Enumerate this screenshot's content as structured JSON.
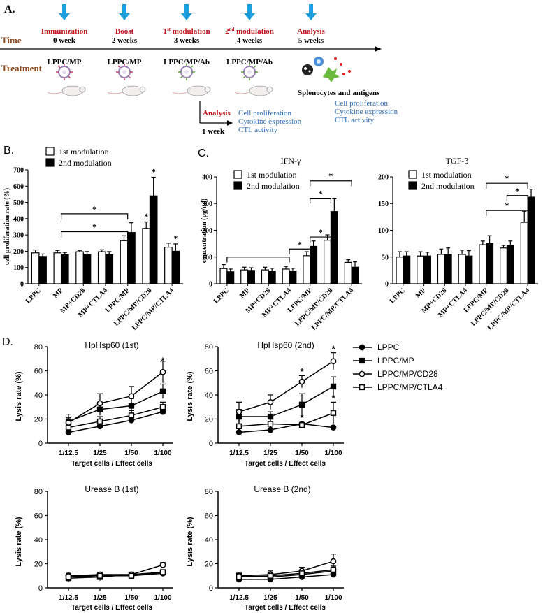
{
  "panelA": {
    "label": "A.",
    "time_label": "Time",
    "treatment_label": "Treatment",
    "events": [
      {
        "title": "Immunization",
        "week": "0 week",
        "treatment": "LPPC/MP",
        "title_color": "#c0141c"
      },
      {
        "title": "Boost",
        "week": "2 weeks",
        "treatment": "LPPC/MP",
        "title_color": "#c0141c"
      },
      {
        "title_pre": "1",
        "title_sup": "st",
        "title_post": " modulation",
        "week": "3 weeks",
        "treatment": "LPPC/MP/Ab",
        "title_color": "#c0141c"
      },
      {
        "title_pre": "2",
        "title_sup": "nd",
        "title_post": " modulation",
        "week": "4 weeks",
        "treatment": "LPPC/MP/Ab",
        "title_color": "#c0141c"
      },
      {
        "title": "Analysis",
        "week": "5 weeks",
        "treatment": "",
        "title_color": "#c0141c"
      }
    ],
    "splenocytes_label": "Splenocytes and antigens",
    "branch_analysis": "Analysis",
    "branch_week": "1 week",
    "outputs": [
      "Cell proliferation",
      "Cytokine expression",
      "CTL activity"
    ],
    "outputs_color": "#2a6ebd",
    "arrow_color": "#1ea0e0",
    "label_color": "#8b4a22"
  },
  "colors": {
    "open_bar": "#ffffff",
    "filled_bar": "#000000",
    "axis": "#000000"
  },
  "chart_data": [
    {
      "id": "B",
      "type": "bar",
      "panel_label": "B.",
      "ylabel": "cell proliferation rate (%)",
      "ylim": [
        0,
        700
      ],
      "yticks": [
        0,
        100,
        200,
        300,
        400,
        500,
        600,
        700
      ],
      "categories": [
        "LPPC",
        "MP",
        "MP+CD28",
        "MP+CTLA4",
        "LPPC/MP",
        "LPPC/MP/CD28",
        "LPPC/MP/CTLA4"
      ],
      "series": [
        {
          "name": "1st modulation",
          "fill": "open",
          "values": [
            190,
            190,
            197,
            197,
            265,
            340,
            225
          ],
          "errors": [
            18,
            15,
            8,
            12,
            30,
            40,
            25
          ]
        },
        {
          "name": "2nd modulation",
          "fill": "filled",
          "values": [
            168,
            178,
            178,
            178,
            315,
            540,
            200
          ],
          "errors": [
            15,
            15,
            20,
            20,
            60,
            115,
            45
          ]
        }
      ],
      "star_labels": [
        {
          "cat": 5,
          "series": 0,
          "text": "*"
        },
        {
          "cat": 5,
          "series": 1,
          "text": "*"
        },
        {
          "cat": 6,
          "series": 1,
          "text": "*"
        }
      ],
      "brackets": [
        {
          "from": 1,
          "to": 4,
          "y": 430,
          "text": "*"
        },
        {
          "from": 1,
          "to": 4,
          "y": 320,
          "text": "*"
        }
      ]
    },
    {
      "id": "C1",
      "type": "bar",
      "panel_label": "C.",
      "title": "IFN-γ",
      "ylabel": "concentration (pg/ml)",
      "ylim": [
        0,
        400
      ],
      "yticks": [
        0,
        100,
        200,
        300,
        400
      ],
      "categories": [
        "LPPC",
        "MP",
        "MP+CD28",
        "MP+CTLA4",
        "LPPC/MP",
        "LPPC/MP/CD28",
        "LPPC/MP/CTLA4"
      ],
      "series": [
        {
          "name": "1st modulation",
          "fill": "open",
          "values": [
            57,
            52,
            52,
            55,
            105,
            163,
            80
          ],
          "errors": [
            15,
            10,
            10,
            10,
            15,
            20,
            10
          ]
        },
        {
          "name": "2nd modulation",
          "fill": "filled",
          "values": [
            45,
            50,
            48,
            48,
            140,
            270,
            62
          ],
          "errors": [
            10,
            10,
            10,
            10,
            20,
            50,
            20
          ]
        }
      ],
      "star_labels": [],
      "brackets": []
    },
    {
      "id": "C2",
      "type": "bar",
      "title": "TGF-β",
      "ylabel": "",
      "ylim": [
        0,
        200
      ],
      "yticks": [
        0,
        50,
        100,
        150,
        200
      ],
      "categories": [
        "LPPC",
        "MP",
        "MP+CD28",
        "MP+CTLA4",
        "LPPC/MP",
        "LPPC/MP/CD28",
        "LPPC/MP/CTLA4"
      ],
      "series": [
        {
          "name": "1st modulation",
          "fill": "open",
          "values": [
            50,
            52,
            55,
            55,
            73,
            67,
            115
          ],
          "errors": [
            10,
            8,
            10,
            8,
            7,
            5,
            20
          ]
        },
        {
          "name": "2nd modulation",
          "fill": "filled",
          "values": [
            52,
            52,
            55,
            52,
            75,
            72,
            162
          ],
          "errors": [
            8,
            7,
            12,
            10,
            15,
            8,
            15
          ]
        }
      ],
      "star_labels": [],
      "brackets": [
        {
          "from": 4,
          "to": 6,
          "y": 188,
          "text": "*"
        },
        {
          "from": 5,
          "to": 6,
          "y": 165,
          "text": "*"
        },
        {
          "from": 4,
          "to": 6,
          "y": 137,
          "text": "*"
        }
      ]
    },
    {
      "id": "D1",
      "type": "line",
      "panel_label": "D.",
      "title": "HpHsp60 (1st)",
      "ylabel": "Lysis rate (%)",
      "xlabel": "Target cells / Effect cells",
      "x": [
        "1/12.5",
        "1/25",
        "1/50",
        "1/100"
      ],
      "ylim": [
        0,
        80
      ],
      "yticks": [
        0,
        20,
        40,
        60,
        80
      ],
      "series": [
        {
          "name": "LPPC",
          "marker": "filled-circle",
          "values": [
            9,
            14,
            19,
            26
          ],
          "errors": [
            1,
            1,
            1,
            1
          ]
        },
        {
          "name": "LPPC/MP",
          "marker": "filled-square",
          "values": [
            18,
            28,
            31,
            43
          ],
          "errors": [
            6,
            5,
            6,
            6
          ]
        },
        {
          "name": "LPPC/MP/CD28",
          "marker": "open-circle",
          "values": [
            17,
            33,
            39,
            59
          ],
          "errors": [
            4,
            8,
            8,
            9
          ]
        },
        {
          "name": "LPPC/MP/CTLA4",
          "marker": "open-square",
          "values": [
            13,
            18,
            23,
            30
          ],
          "errors": [
            4,
            4,
            4,
            4
          ]
        }
      ],
      "stars": [
        {
          "x": 3,
          "y": 68,
          "text": "*"
        }
      ]
    },
    {
      "id": "D2",
      "type": "line",
      "title": "HpHsp60 (2nd)",
      "ylabel": "Lysis rate (%)",
      "xlabel": "Target cells / Effect cells",
      "x": [
        "1/12.5",
        "1/25",
        "1/50",
        "1/100"
      ],
      "ylim": [
        0,
        80
      ],
      "yticks": [
        0,
        20,
        40,
        60,
        80
      ],
      "series": [
        {
          "name": "LPPC",
          "marker": "filled-circle",
          "values": [
            9,
            11,
            16,
            13
          ],
          "errors": [
            1,
            1,
            1,
            1
          ]
        },
        {
          "name": "LPPC/MP",
          "marker": "filled-square",
          "values": [
            22,
            22,
            32,
            47
          ],
          "errors": [
            6,
            4,
            9,
            8
          ]
        },
        {
          "name": "LPPC/MP/CD28",
          "marker": "open-circle",
          "values": [
            26,
            34,
            51,
            68
          ],
          "errors": [
            8,
            6,
            5,
            7
          ]
        },
        {
          "name": "LPPC/MP/CTLA4",
          "marker": "open-square",
          "values": [
            14,
            16,
            15,
            25
          ],
          "errors": [
            6,
            4,
            2,
            9
          ]
        }
      ],
      "stars": [
        {
          "x": 2,
          "y": 59,
          "text": "*"
        },
        {
          "x": 2,
          "y": 21,
          "text": "*"
        },
        {
          "x": 3,
          "y": 78,
          "text": "*"
        },
        {
          "x": 3,
          "y": 37,
          "text": "*"
        }
      ]
    },
    {
      "id": "D3",
      "type": "line",
      "title": "Urease B (1st)",
      "ylabel": "Lysis rate (%)",
      "xlabel": "Target cells / Effect cells",
      "x": [
        "1/12.5",
        "1/25",
        "1/50",
        "1/100"
      ],
      "ylim": [
        0,
        80
      ],
      "yticks": [
        0,
        20,
        40,
        60,
        80
      ],
      "series": [
        {
          "name": "LPPC",
          "marker": "filled-circle",
          "values": [
            10,
            10,
            10,
            12
          ],
          "errors": [
            2,
            2,
            2,
            2
          ]
        },
        {
          "name": "LPPC/MP",
          "marker": "filled-square",
          "values": [
            8,
            9,
            11,
            13
          ],
          "errors": [
            3,
            3,
            2,
            2
          ]
        },
        {
          "name": "LPPC/MP/CD28",
          "marker": "open-circle",
          "values": [
            10,
            11,
            11,
            19
          ],
          "errors": [
            3,
            2,
            2,
            2
          ]
        },
        {
          "name": "LPPC/MP/CTLA4",
          "marker": "open-square",
          "values": [
            9,
            10,
            10,
            13
          ],
          "errors": [
            2,
            2,
            2,
            2
          ]
        }
      ],
      "stars": []
    },
    {
      "id": "D4",
      "type": "line",
      "title": "Urease B (2nd)",
      "ylabel": "Lysis rate (%)",
      "xlabel": "Target cells / Effect cells",
      "x": [
        "1/12.5",
        "1/25",
        "1/50",
        "1/100"
      ],
      "ylim": [
        0,
        80
      ],
      "yticks": [
        0,
        20,
        40,
        60,
        80
      ],
      "series": [
        {
          "name": "LPPC",
          "marker": "filled-circle",
          "values": [
            7,
            7,
            9,
            11
          ],
          "errors": [
            2,
            2,
            2,
            2
          ]
        },
        {
          "name": "LPPC/MP",
          "marker": "filled-square",
          "values": [
            10,
            9,
            11,
            14
          ],
          "errors": [
            2,
            2,
            2,
            4
          ]
        },
        {
          "name": "LPPC/MP/CD28",
          "marker": "open-circle",
          "values": [
            10,
            11,
            14,
            22
          ],
          "errors": [
            3,
            3,
            3,
            6
          ]
        },
        {
          "name": "LPPC/MP/CTLA4",
          "marker": "open-square",
          "values": [
            9,
            10,
            12,
            15
          ],
          "errors": [
            2,
            2,
            2,
            3
          ]
        }
      ],
      "stars": []
    }
  ]
}
